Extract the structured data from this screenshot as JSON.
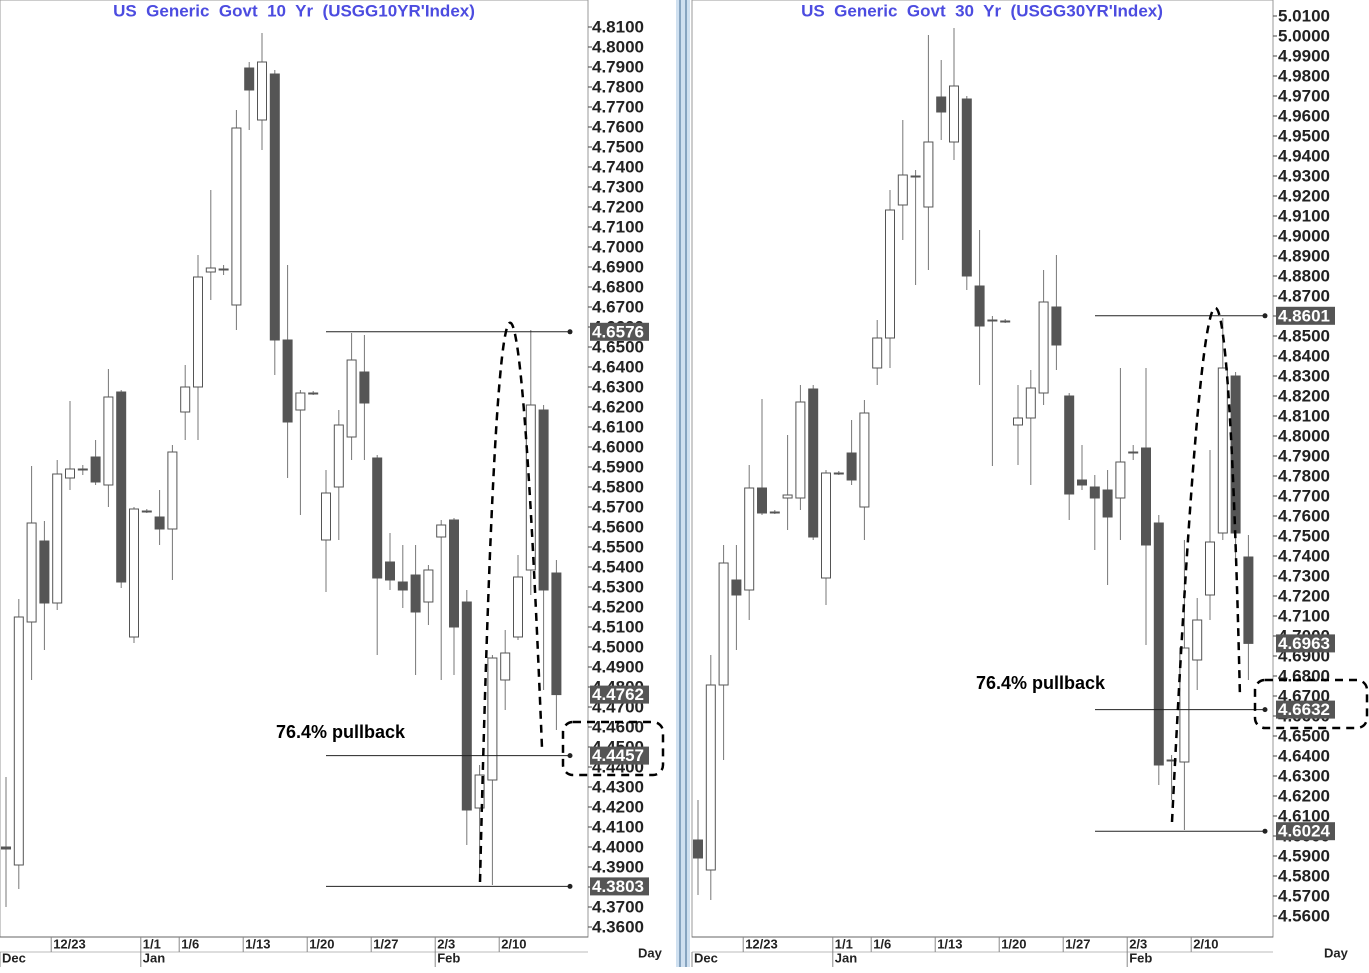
{
  "chart_data": [
    {
      "type": "candlestick",
      "title": "US  Generic  Govt  10  Yr  (USGG10YR'Index)",
      "annotation": "76.4% pullback",
      "x_axis_label": "Day",
      "categories": [
        null,
        null,
        null,
        null,
        "12/23",
        null,
        null,
        null,
        null,
        null,
        null,
        "1/1",
        null,
        null,
        "1/6",
        null,
        null,
        null,
        null,
        "1/13",
        null,
        null,
        null,
        null,
        "1/20",
        null,
        null,
        null,
        null,
        "1/27",
        null,
        null,
        null,
        null,
        "2/3",
        null,
        null,
        null,
        null,
        "2/10",
        null,
        null,
        null,
        null
      ],
      "months": [
        "Dec",
        null,
        null,
        null,
        null,
        null,
        null,
        null,
        null,
        null,
        null,
        "Jan",
        null,
        null,
        null,
        null,
        null,
        null,
        null,
        null,
        null,
        null,
        null,
        null,
        null,
        null,
        null,
        null,
        null,
        null,
        null,
        null,
        null,
        null,
        "Feb",
        null,
        null,
        null,
        null,
        null,
        null,
        null,
        null,
        null
      ],
      "open": [
        4.4,
        4.391,
        4.5125,
        4.553,
        4.522,
        4.5845,
        4.589,
        4.595,
        4.581,
        4.6275,
        4.505,
        4.568,
        4.565,
        4.559,
        4.6175,
        4.63,
        4.6875,
        4.689,
        4.671,
        4.7895,
        4.7635,
        4.7865,
        4.6535,
        4.6185,
        4.627,
        4.5535,
        4.58,
        4.605,
        4.6375,
        4.5945,
        4.5425,
        4.5325,
        4.536,
        4.5225,
        4.555,
        4.5635,
        4.5225,
        4.4195,
        4.4335,
        4.4835,
        4.505,
        4.5385,
        4.6185,
        4.537
      ],
      "high": [
        4.435,
        4.524,
        4.5905,
        4.563,
        4.5935,
        4.623,
        4.591,
        4.6035,
        4.639,
        4.6285,
        4.57,
        4.569,
        4.5785,
        4.601,
        4.641,
        4.696,
        4.7285,
        4.691,
        4.7685,
        4.7925,
        4.807,
        4.7885,
        4.691,
        4.6285,
        4.628,
        4.5885,
        4.6185,
        4.657,
        4.656,
        4.596,
        4.557,
        4.551,
        4.551,
        4.541,
        4.5635,
        4.5645,
        4.5285,
        4.441,
        4.496,
        4.5085,
        4.546,
        4.6585,
        4.621,
        4.5435
      ],
      "low": [
        4.37,
        4.379,
        4.4835,
        4.4985,
        4.5185,
        4.5785,
        4.586,
        4.581,
        4.57,
        4.5295,
        4.502,
        4.567,
        4.551,
        4.5335,
        4.6035,
        4.6035,
        4.6735,
        4.686,
        4.6585,
        4.7585,
        4.7485,
        4.636,
        4.5845,
        4.566,
        4.626,
        4.5275,
        4.5535,
        4.5935,
        4.5935,
        4.496,
        4.5285,
        4.5195,
        4.486,
        4.511,
        4.4835,
        4.486,
        4.401,
        4.3835,
        4.381,
        4.4685,
        4.5035,
        4.526,
        4.4785,
        4.4585
      ],
      "close": [
        4.399,
        4.515,
        4.562,
        4.522,
        4.5865,
        4.589,
        4.589,
        4.5825,
        4.625,
        4.5325,
        4.569,
        4.568,
        4.559,
        4.5975,
        4.63,
        4.685,
        4.6895,
        4.689,
        4.7595,
        4.7785,
        4.7925,
        4.6535,
        4.6125,
        4.627,
        4.627,
        4.577,
        4.611,
        4.6435,
        4.622,
        4.5345,
        4.5335,
        4.5285,
        4.5175,
        4.5385,
        4.561,
        4.51,
        4.4185,
        4.436,
        4.4945,
        4.497,
        4.535,
        4.621,
        4.5285,
        4.4762
      ],
      "levels": [
        4.6576,
        4.4457,
        4.3803
      ],
      "last_price": 4.4762,
      "ylim": [
        4.355,
        4.8235
      ],
      "yticks": [
        {
          "value": 4.36,
          "label": "4.3600"
        },
        {
          "value": 4.37,
          "label": "4.3700"
        },
        {
          "value": 4.38,
          "label": "4.3800"
        },
        {
          "value": 4.39,
          "label": "4.3900"
        },
        {
          "value": 4.4,
          "label": "4.4000"
        },
        {
          "value": 4.41,
          "label": "4.4100"
        },
        {
          "value": 4.42,
          "label": "4.4200"
        },
        {
          "value": 4.43,
          "label": "4.4300"
        },
        {
          "value": 4.44,
          "label": "4.4400"
        },
        {
          "value": 4.45,
          "label": "4.4500"
        },
        {
          "value": 4.46,
          "label": "4.4600"
        },
        {
          "value": 4.47,
          "label": "4.4700"
        },
        {
          "value": 4.48,
          "label": "4.4800"
        },
        {
          "value": 4.49,
          "label": "4.4900"
        },
        {
          "value": 4.5,
          "label": "4.5000"
        },
        {
          "value": 4.51,
          "label": "4.5100"
        },
        {
          "value": 4.52,
          "label": "4.5200"
        },
        {
          "value": 4.53,
          "label": "4.5300"
        },
        {
          "value": 4.54,
          "label": "4.5400"
        },
        {
          "value": 4.55,
          "label": "4.5500"
        },
        {
          "value": 4.56,
          "label": "4.5600"
        },
        {
          "value": 4.57,
          "label": "4.5700"
        },
        {
          "value": 4.58,
          "label": "4.5800"
        },
        {
          "value": 4.59,
          "label": "4.5900"
        },
        {
          "value": 4.6,
          "label": "4.6000"
        },
        {
          "value": 4.61,
          "label": "4.6100"
        },
        {
          "value": 4.62,
          "label": "4.6200"
        },
        {
          "value": 4.63,
          "label": "4.6300"
        },
        {
          "value": 4.64,
          "label": "4.6400"
        },
        {
          "value": 4.65,
          "label": "4.6500"
        },
        {
          "value": 4.66,
          "label": "4.6600"
        },
        {
          "value": 4.67,
          "label": "4.6700"
        },
        {
          "value": 4.68,
          "label": "4.6800"
        },
        {
          "value": 4.69,
          "label": "4.6900"
        },
        {
          "value": 4.7,
          "label": "4.7000"
        },
        {
          "value": 4.71,
          "label": "4.7100"
        },
        {
          "value": 4.72,
          "label": "4.7200"
        },
        {
          "value": 4.73,
          "label": "4.7300"
        },
        {
          "value": 4.74,
          "label": "4.7400"
        },
        {
          "value": 4.75,
          "label": "4.7500"
        },
        {
          "value": 4.76,
          "label": "4.7600"
        },
        {
          "value": 4.77,
          "label": "4.7700"
        },
        {
          "value": 4.78,
          "label": "4.7800"
        },
        {
          "value": 4.79,
          "label": "4.7900"
        },
        {
          "value": 4.8,
          "label": "4.8000"
        },
        {
          "value": 4.81,
          "label": "4.8100"
        }
      ]
    },
    {
      "type": "candlestick",
      "title": "US  Generic  Govt  30  Yr  (USGG30YR'Index)",
      "annotation": "76.4% pullback",
      "x_axis_label": "Day",
      "categories": [
        null,
        null,
        null,
        null,
        "12/23",
        null,
        null,
        null,
        null,
        null,
        null,
        "1/1",
        null,
        null,
        "1/6",
        null,
        null,
        null,
        null,
        "1/13",
        null,
        null,
        null,
        null,
        "1/20",
        null,
        null,
        null,
        null,
        "1/27",
        null,
        null,
        null,
        null,
        "2/3",
        null,
        null,
        null,
        null,
        "2/10",
        null,
        null,
        null,
        null
      ],
      "months": [
        "Dec",
        null,
        null,
        null,
        null,
        null,
        null,
        null,
        null,
        null,
        null,
        "Jan",
        null,
        null,
        null,
        null,
        null,
        null,
        null,
        null,
        null,
        null,
        null,
        null,
        null,
        null,
        null,
        null,
        null,
        null,
        null,
        null,
        null,
        null,
        "Feb",
        null,
        null,
        null,
        null,
        null,
        null,
        null,
        null,
        null
      ],
      "open": [
        4.598,
        4.583,
        4.6755,
        4.728,
        4.723,
        4.774,
        4.762,
        4.769,
        4.769,
        4.8235,
        4.729,
        4.7815,
        4.7915,
        4.7645,
        4.834,
        4.849,
        4.9155,
        4.93,
        4.9145,
        4.9695,
        4.947,
        4.9685,
        4.875,
        4.858,
        4.8575,
        4.8055,
        4.809,
        4.8215,
        4.8645,
        4.82,
        4.778,
        4.7745,
        4.773,
        4.769,
        4.792,
        4.794,
        4.7565,
        4.638,
        4.637,
        4.688,
        4.7205,
        4.7515,
        4.83,
        4.7395
      ],
      "high": [
        4.618,
        4.6905,
        4.7455,
        4.7455,
        4.7855,
        4.8185,
        4.763,
        4.8005,
        4.8255,
        4.8255,
        4.783,
        4.7825,
        4.808,
        4.818,
        4.858,
        4.923,
        4.958,
        4.933,
        5.0005,
        4.988,
        5.004,
        4.97,
        4.903,
        4.86,
        4.8585,
        4.8255,
        4.833,
        4.883,
        4.8905,
        4.8215,
        4.7955,
        4.7805,
        4.783,
        4.834,
        4.7955,
        4.834,
        4.7605,
        4.6405,
        4.748,
        4.719,
        4.793,
        4.859,
        4.832,
        4.7505
      ],
      "low": [
        4.5705,
        4.568,
        4.638,
        4.693,
        4.708,
        4.7605,
        4.761,
        4.753,
        4.763,
        4.748,
        4.7155,
        4.7805,
        4.7755,
        4.748,
        4.8255,
        4.834,
        4.898,
        4.8755,
        4.883,
        4.948,
        4.938,
        4.873,
        4.8255,
        4.785,
        4.8565,
        4.7855,
        4.7755,
        4.8155,
        4.833,
        4.758,
        4.773,
        4.743,
        4.7255,
        4.748,
        4.788,
        4.6955,
        4.6255,
        4.618,
        4.603,
        4.673,
        4.708,
        4.748,
        4.738,
        4.678
      ],
      "close": [
        4.589,
        4.6755,
        4.7365,
        4.7205,
        4.774,
        4.7615,
        4.762,
        4.7705,
        4.817,
        4.7495,
        4.7815,
        4.7815,
        4.778,
        4.8115,
        4.849,
        4.913,
        4.9305,
        4.93,
        4.947,
        4.962,
        4.975,
        4.88,
        4.855,
        4.858,
        4.8575,
        4.809,
        4.824,
        4.867,
        4.8455,
        4.771,
        4.7755,
        4.769,
        4.7595,
        4.787,
        4.792,
        4.7455,
        4.6355,
        4.638,
        4.694,
        4.708,
        4.747,
        4.834,
        4.7515,
        4.6963
      ],
      "levels": [
        4.8601,
        4.6632,
        4.6024
      ],
      "last_price": 4.6963,
      "ylim": [
        4.5495,
        5.018
      ],
      "yticks": [
        {
          "value": 4.56,
          "label": "4.5600"
        },
        {
          "value": 4.57,
          "label": "4.5700"
        },
        {
          "value": 4.58,
          "label": "4.5800"
        },
        {
          "value": 4.59,
          "label": "4.5900"
        },
        {
          "value": 4.6,
          "label": "4.6000"
        },
        {
          "value": 4.61,
          "label": "4.6100"
        },
        {
          "value": 4.62,
          "label": "4.6200"
        },
        {
          "value": 4.63,
          "label": "4.6300"
        },
        {
          "value": 4.64,
          "label": "4.6400"
        },
        {
          "value": 4.65,
          "label": "4.6500"
        },
        {
          "value": 4.66,
          "label": "4.6600"
        },
        {
          "value": 4.67,
          "label": "4.6700"
        },
        {
          "value": 4.68,
          "label": "4.6800"
        },
        {
          "value": 4.69,
          "label": "4.6900"
        },
        {
          "value": 4.7,
          "label": "4.7000"
        },
        {
          "value": 4.71,
          "label": "4.7100"
        },
        {
          "value": 4.72,
          "label": "4.7200"
        },
        {
          "value": 4.73,
          "label": "4.7300"
        },
        {
          "value": 4.74,
          "label": "4.7400"
        },
        {
          "value": 4.75,
          "label": "4.7500"
        },
        {
          "value": 4.76,
          "label": "4.7600"
        },
        {
          "value": 4.77,
          "label": "4.7700"
        },
        {
          "value": 4.78,
          "label": "4.7800"
        },
        {
          "value": 4.79,
          "label": "4.7900"
        },
        {
          "value": 4.8,
          "label": "4.8000"
        },
        {
          "value": 4.81,
          "label": "4.8100"
        },
        {
          "value": 4.82,
          "label": "4.8200"
        },
        {
          "value": 4.83,
          "label": "4.8300"
        },
        {
          "value": 4.84,
          "label": "4.8400"
        },
        {
          "value": 4.85,
          "label": "4.8500"
        },
        {
          "value": 4.86,
          "label": "4.8600"
        },
        {
          "value": 4.87,
          "label": "4.8700"
        },
        {
          "value": 4.88,
          "label": "4.8800"
        },
        {
          "value": 4.89,
          "label": "4.8900"
        },
        {
          "value": 4.9,
          "label": "4.9000"
        },
        {
          "value": 4.91,
          "label": "4.9100"
        },
        {
          "value": 4.92,
          "label": "4.9200"
        },
        {
          "value": 4.93,
          "label": "4.9300"
        },
        {
          "value": 4.94,
          "label": "4.9400"
        },
        {
          "value": 4.95,
          "label": "4.9500"
        },
        {
          "value": 4.96,
          "label": "4.9600"
        },
        {
          "value": 4.97,
          "label": "4.9700"
        },
        {
          "value": 4.98,
          "label": "4.9800"
        },
        {
          "value": 4.99,
          "label": "4.9900"
        },
        {
          "value": 5.0,
          "label": "5.0000"
        },
        {
          "value": 5.01,
          "label": "5.0100"
        }
      ]
    }
  ]
}
